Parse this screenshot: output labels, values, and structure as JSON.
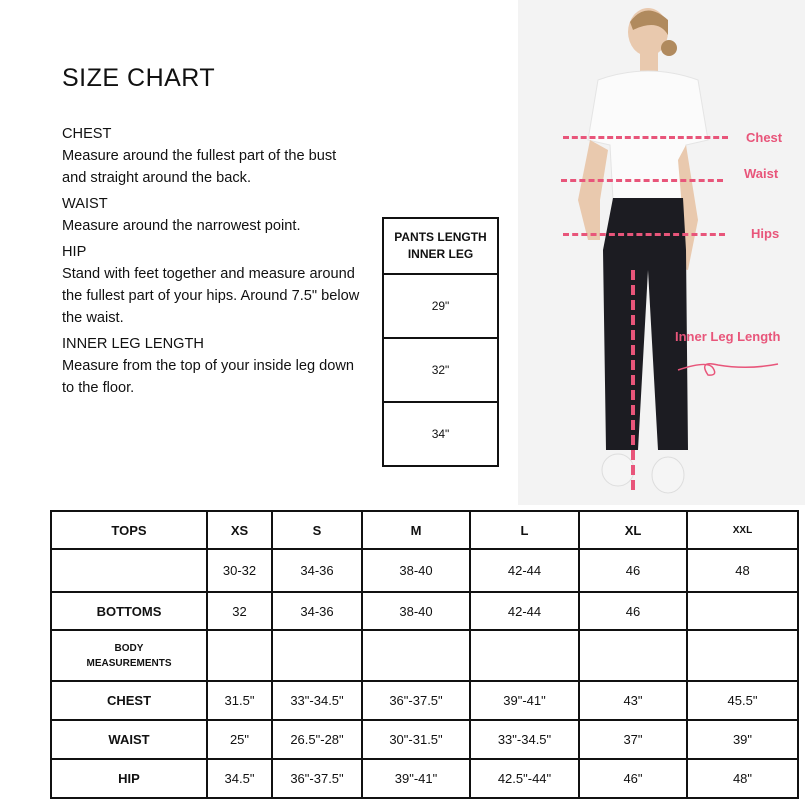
{
  "title": "SIZE CHART",
  "guide": [
    {
      "heading": "CHEST",
      "text": "Measure around the fullest part of the bust and straight around the back."
    },
    {
      "heading": "WAIST",
      "text": "Measure around the narrowest point."
    },
    {
      "heading": "HIP",
      "text": "Stand with feet together and measure around the fullest part of your hips. Around 7.5\" below the waist."
    },
    {
      "heading": "INNER LEG LENGTH",
      "text": "Measure from the top of your inside leg down to the floor."
    }
  ],
  "pants_length": {
    "header_line1": "PANTS LENGTH",
    "header_line2": "INNER LEG",
    "values": [
      "29\"",
      "32\"",
      "34\""
    ]
  },
  "photo_labels": {
    "chest": "Chest",
    "waist": "Waist",
    "hips": "Hips",
    "inner_leg": "Inner Leg Length"
  },
  "accent_color": "#e8557a",
  "size_table": {
    "header": [
      "TOPS",
      "XS",
      "S",
      "M",
      "L",
      "XL",
      "XXL"
    ],
    "rows": [
      [
        "",
        "30-32",
        "34-36",
        "38-40",
        "42-44",
        "46",
        "48"
      ],
      [
        "BOTTOMS",
        "32",
        "34-36",
        "38-40",
        "42-44",
        "46",
        ""
      ],
      [
        "BODY MEASUREMENTS",
        "",
        "",
        "",
        "",
        "",
        ""
      ],
      [
        "CHEST",
        "31.5\"",
        "33\"-34.5\"",
        "36\"-37.5\"",
        "39\"-41\"",
        "43\"",
        "45.5\""
      ],
      [
        "WAIST",
        "25\"",
        "26.5\"-28\"",
        "30\"-31.5\"",
        "33\"-34.5\"",
        "37\"",
        "39\""
      ],
      [
        "HIP",
        "34.5\"",
        "36\"-37.5\"",
        "39\"-41\"",
        "42.5\"-44\"",
        "46\"",
        "48\""
      ]
    ]
  }
}
